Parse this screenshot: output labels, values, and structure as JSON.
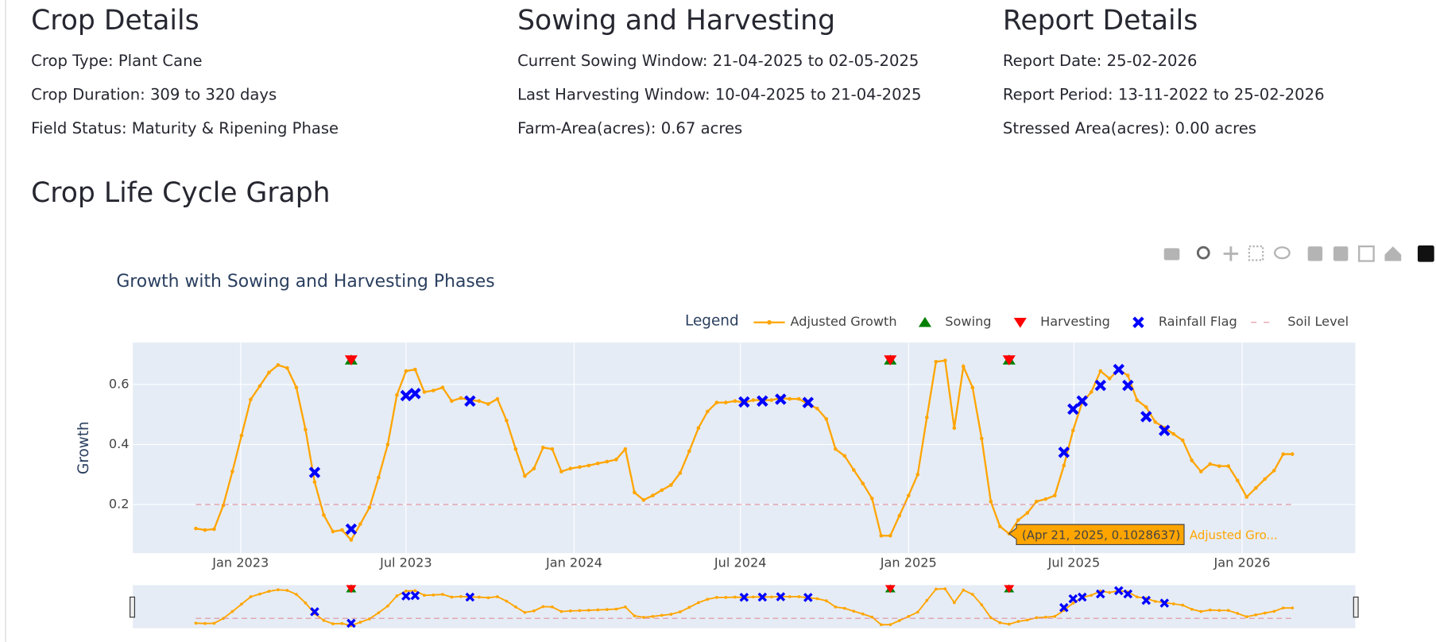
{
  "sections": [
    {
      "title": "Crop Details",
      "items": [
        "Crop Type: Plant Cane",
        "Crop Duration: 309 to 320 days",
        "Field Status: Maturity & Ripening Phase"
      ]
    },
    {
      "title": "Sowing and Harvesting",
      "items": [
        "Current Sowing Window: 21-04-2025 to 02-05-2025",
        "Last Harvesting Window: 10-04-2025 to 21-04-2025",
        "Farm-Area(acres): 0.67 acres"
      ]
    },
    {
      "title": "Report Details",
      "items": [
        "Report Date: 25-02-2026",
        "Report Period: 13-11-2022 to 25-02-2026",
        "Stressed Area(acres): 0.00 acres"
      ]
    }
  ],
  "graph_heading": "Crop Life Cycle Graph",
  "chart_data": {
    "type": "line",
    "title": "Growth with Sowing and Harvesting Phases",
    "y_label": "Growth",
    "legend_title": "Legend",
    "legend": "top-right",
    "grid": true,
    "background": "#e5ecf6",
    "range_slider": true,
    "xlim": [
      "2022-09-05",
      "2026-05-05"
    ],
    "xticks": [
      {
        "value": "2023-01-01",
        "label": "Jan 2023"
      },
      {
        "value": "2023-07-01",
        "label": "Jul 2023"
      },
      {
        "value": "2024-01-01",
        "label": "Jan 2024"
      },
      {
        "value": "2024-07-01",
        "label": "Jul 2024"
      },
      {
        "value": "2025-01-01",
        "label": "Jan 2025"
      },
      {
        "value": "2025-07-01",
        "label": "Jul 2025"
      },
      {
        "value": "2026-01-01",
        "label": "Jan 2026"
      }
    ],
    "ylim": [
      0.038,
      0.74
    ],
    "yticks": [
      0.2,
      0.4,
      0.6
    ],
    "series": [
      {
        "name": "Adjusted Growth",
        "color": "#ffa500",
        "mode": "lines+markers",
        "x": [
          "2022-11-13",
          "2022-11-23",
          "2022-12-03",
          "2022-12-13",
          "2022-12-23",
          "2023-01-02",
          "2023-01-12",
          "2023-01-22",
          "2023-02-01",
          "2023-02-11",
          "2023-02-21",
          "2023-03-03",
          "2023-03-13",
          "2023-03-23",
          "2023-04-02",
          "2023-04-12",
          "2023-04-22",
          "2023-05-02",
          "2023-05-12",
          "2023-05-22",
          "2023-06-01",
          "2023-06-11",
          "2023-06-21",
          "2023-07-01",
          "2023-07-11",
          "2023-07-21",
          "2023-07-31",
          "2023-08-10",
          "2023-08-20",
          "2023-08-30",
          "2023-09-09",
          "2023-09-19",
          "2023-09-29",
          "2023-10-09",
          "2023-10-19",
          "2023-10-29",
          "2023-11-08",
          "2023-11-18",
          "2023-11-28",
          "2023-12-08",
          "2023-12-18",
          "2023-12-28",
          "2024-01-07",
          "2024-01-17",
          "2024-01-27",
          "2024-02-06",
          "2024-02-16",
          "2024-02-26",
          "2024-03-07",
          "2024-03-17",
          "2024-03-27",
          "2024-04-06",
          "2024-04-16",
          "2024-04-26",
          "2024-05-06",
          "2024-05-16",
          "2024-05-26",
          "2024-06-05",
          "2024-06-15",
          "2024-06-25",
          "2024-07-05",
          "2024-07-15",
          "2024-07-25",
          "2024-08-04",
          "2024-08-14",
          "2024-08-24",
          "2024-09-03",
          "2024-09-13",
          "2024-09-23",
          "2024-10-03",
          "2024-10-13",
          "2024-10-23",
          "2024-11-02",
          "2024-11-12",
          "2024-11-22",
          "2024-12-02",
          "2024-12-12",
          "2024-12-22",
          "2025-01-01",
          "2025-01-11",
          "2025-01-21",
          "2025-01-31",
          "2025-02-10",
          "2025-02-20",
          "2025-03-02",
          "2025-03-12",
          "2025-03-22",
          "2025-04-01",
          "2025-04-11",
          "2025-04-21",
          "2025-05-01",
          "2025-05-11",
          "2025-05-21",
          "2025-05-31",
          "2025-06-10",
          "2025-06-20",
          "2025-06-30",
          "2025-07-10",
          "2025-07-20",
          "2025-07-30",
          "2025-08-09",
          "2025-08-19",
          "2025-08-29",
          "2025-09-08",
          "2025-09-18",
          "2025-09-28",
          "2025-10-08",
          "2025-10-18",
          "2025-10-28",
          "2025-11-07",
          "2025-11-17",
          "2025-11-27",
          "2025-12-07",
          "2025-12-17",
          "2025-12-27",
          "2026-01-06",
          "2026-01-16",
          "2026-01-26",
          "2026-02-05",
          "2026-02-15",
          "2026-02-25"
        ],
        "values": [
          0.12,
          0.115,
          0.118,
          0.197,
          0.31,
          0.43,
          0.55,
          0.595,
          0.64,
          0.665,
          0.655,
          0.59,
          0.45,
          0.275,
          0.165,
          0.11,
          0.115,
          0.082,
          0.135,
          0.19,
          0.29,
          0.4,
          0.565,
          0.645,
          0.65,
          0.575,
          0.58,
          0.59,
          0.545,
          0.555,
          0.548,
          0.545,
          0.535,
          0.552,
          0.48,
          0.385,
          0.295,
          0.32,
          0.39,
          0.385,
          0.31,
          0.32,
          0.325,
          0.33,
          0.337,
          0.343,
          0.35,
          0.385,
          0.24,
          0.215,
          0.23,
          0.248,
          0.265,
          0.305,
          0.378,
          0.455,
          0.51,
          0.54,
          0.54,
          0.545,
          0.54,
          0.548,
          0.548,
          0.548,
          0.555,
          0.552,
          0.552,
          0.535,
          0.52,
          0.485,
          0.385,
          0.362,
          0.315,
          0.27,
          0.22,
          0.096,
          0.096,
          0.163,
          0.23,
          0.3,
          0.49,
          0.676,
          0.68,
          0.455,
          0.66,
          0.59,
          0.42,
          0.21,
          0.127,
          0.1028637,
          0.148,
          0.172,
          0.21,
          0.218,
          0.23,
          0.33,
          0.447,
          0.54,
          0.575,
          0.645,
          0.62,
          0.65,
          0.63,
          0.548,
          0.525,
          0.475,
          0.456,
          0.435,
          0.414,
          0.347,
          0.31,
          0.335,
          0.328,
          0.328,
          0.28,
          0.225,
          0.255,
          0.285,
          0.313,
          0.368,
          0.368
        ]
      },
      {
        "name": "Sowing",
        "color": "#008000",
        "mode": "markers",
        "symbol": "triangle-up",
        "x": [
          "2023-05-02",
          "2024-12-12",
          "2025-04-21"
        ],
        "values": [
          0.682,
          0.682,
          0.682
        ]
      },
      {
        "name": "Harvesting",
        "color": "#ff0000",
        "mode": "markers",
        "symbol": "triangle-down",
        "x": [
          "2023-05-02",
          "2024-12-12",
          "2025-04-21"
        ],
        "values": [
          0.682,
          0.682,
          0.682
        ]
      },
      {
        "name": "Rainfall Flag",
        "color": "#0000ff",
        "mode": "markers",
        "symbol": "x",
        "x": [
          "2023-03-23",
          "2023-05-02",
          "2023-07-01",
          "2023-07-11",
          "2023-09-09",
          "2024-07-05",
          "2024-07-25",
          "2024-08-14",
          "2024-09-13",
          "2025-06-20",
          "2025-06-30",
          "2025-07-10",
          "2025-07-30",
          "2025-08-19",
          "2025-08-29",
          "2025-09-18",
          "2025-10-08"
        ],
        "values": [
          0.307,
          0.118,
          0.563,
          0.57,
          0.545,
          0.542,
          0.545,
          0.551,
          0.54,
          0.374,
          0.518,
          0.545,
          0.597,
          0.65,
          0.597,
          0.493,
          0.447
        ]
      },
      {
        "name": "Soil Level",
        "color": "#e0919c",
        "mode": "lines",
        "dash": true,
        "x": [
          "2022-11-13",
          "2026-02-25"
        ],
        "values": [
          0.2,
          0.2
        ]
      }
    ],
    "hover": {
      "series": 0,
      "index": 89,
      "text": "(Apr 21, 2025, 0.1028637)",
      "series_label": "Adjusted Gro..."
    }
  }
}
